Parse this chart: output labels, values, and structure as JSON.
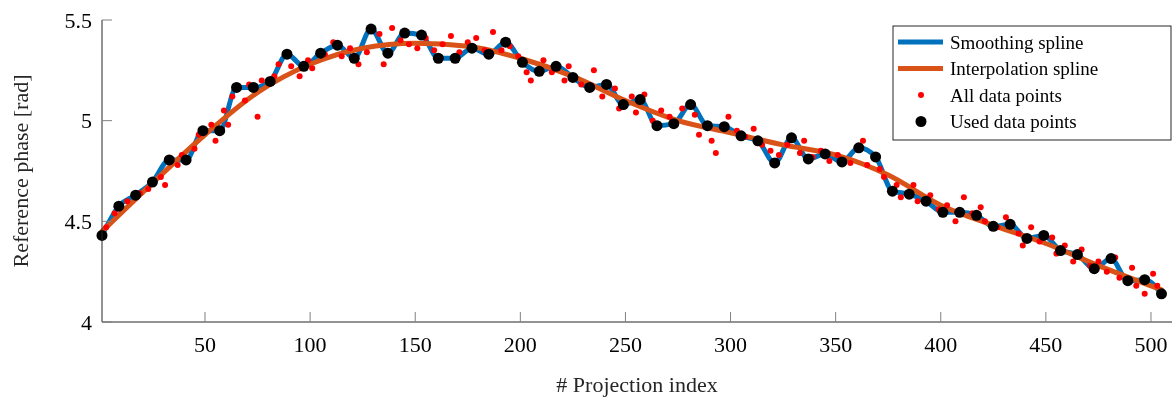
{
  "chart_data": {
    "type": "line",
    "xlabel": "# Projection index",
    "ylabel": "Reference phase [rad]",
    "xlim": [
      1,
      510
    ],
    "ylim": [
      4,
      5.5
    ],
    "xticks": [
      50,
      100,
      150,
      200,
      250,
      300,
      350,
      400,
      450,
      500
    ],
    "yticks": [
      4,
      4.5,
      5,
      5.5
    ],
    "grid": false,
    "legend": "top right",
    "series": [
      {
        "name": "Smoothing spline",
        "color": "#0072bd",
        "marker": "none",
        "x": [
          1,
          9,
          17,
          25,
          33,
          41,
          49,
          57,
          65,
          73,
          81,
          89,
          97,
          105,
          113,
          121,
          129,
          137,
          145,
          153,
          161,
          169,
          177,
          185,
          193,
          201,
          209,
          217,
          225,
          233,
          241,
          249,
          257,
          265,
          273,
          281,
          289,
          297,
          305,
          313,
          321,
          329,
          337,
          345,
          353,
          361,
          369,
          377,
          385,
          393,
          401,
          409,
          417,
          425,
          433,
          441,
          449,
          457,
          465,
          473,
          481,
          489,
          497,
          505
        ],
        "values": [
          4.43,
          4.575,
          4.63,
          4.695,
          4.805,
          4.805,
          4.95,
          4.95,
          5.165,
          5.165,
          5.195,
          5.33,
          5.27,
          5.335,
          5.375,
          5.31,
          5.455,
          5.335,
          5.435,
          5.425,
          5.31,
          5.31,
          5.36,
          5.33,
          5.39,
          5.29,
          5.245,
          5.27,
          5.215,
          5.165,
          5.18,
          5.08,
          5.105,
          4.975,
          4.985,
          5.08,
          4.975,
          4.97,
          4.925,
          4.9,
          4.79,
          4.915,
          4.81,
          4.835,
          4.795,
          4.865,
          4.82,
          4.65,
          4.635,
          4.6,
          4.545,
          4.545,
          4.53,
          4.475,
          4.485,
          4.415,
          4.43,
          4.355,
          4.335,
          4.265,
          4.315,
          4.205,
          4.21,
          4.14
        ]
      },
      {
        "name": "Interpolation spline",
        "color": "#d95319",
        "marker": "none",
        "x": [
          1,
          25,
          50,
          75,
          100,
          125,
          150,
          175,
          200,
          225,
          250,
          275,
          300,
          325,
          350,
          375,
          400,
          425,
          450,
          475,
          505
        ],
        "values": [
          4.45,
          4.69,
          4.93,
          5.14,
          5.28,
          5.36,
          5.385,
          5.37,
          5.31,
          5.22,
          5.1,
          5.0,
          4.94,
          4.88,
          4.83,
          4.73,
          4.58,
          4.48,
          4.39,
          4.28,
          4.16
        ]
      },
      {
        "name": "All data points",
        "type": "scatter",
        "color": "#ff0000",
        "marker": "circle",
        "x": [
          3,
          7,
          13,
          19,
          23,
          29,
          31,
          37,
          39,
          45,
          47,
          53,
          55,
          59,
          61,
          63,
          69,
          71,
          75,
          77,
          83,
          85,
          91,
          95,
          99,
          101,
          107,
          111,
          115,
          119,
          123,
          127,
          133,
          135,
          139,
          143,
          147,
          151,
          155,
          159,
          163,
          167,
          171,
          175,
          179,
          183,
          187,
          191,
          195,
          199,
          203,
          205,
          211,
          215,
          221,
          223,
          229,
          235,
          239,
          245,
          247,
          253,
          255,
          259,
          263,
          267,
          271,
          277,
          283,
          285,
          291,
          293,
          299,
          303,
          307,
          311,
          315,
          319,
          323,
          327,
          333,
          335,
          339,
          343,
          347,
          351,
          357,
          363,
          365,
          371,
          373,
          379,
          381,
          387,
          389,
          395,
          399,
          403,
          407,
          411,
          415,
          419,
          421,
          427,
          431,
          437,
          439,
          443,
          447,
          453,
          455,
          459,
          463,
          467,
          471,
          475,
          479,
          483,
          485,
          491,
          493,
          497,
          501,
          503
        ],
        "values": [
          4.47,
          4.54,
          4.6,
          4.64,
          4.66,
          4.72,
          4.68,
          4.78,
          4.83,
          4.86,
          4.93,
          4.98,
          4.9,
          5.05,
          4.98,
          5.12,
          5.1,
          5.18,
          5.02,
          5.2,
          5.22,
          5.28,
          5.27,
          5.22,
          5.3,
          5.26,
          5.33,
          5.39,
          5.32,
          5.36,
          5.28,
          5.34,
          5.43,
          5.28,
          5.46,
          5.4,
          5.38,
          5.36,
          5.41,
          5.35,
          5.38,
          5.42,
          5.34,
          5.39,
          5.41,
          5.35,
          5.44,
          5.35,
          5.37,
          5.32,
          5.24,
          5.2,
          5.3,
          5.24,
          5.2,
          5.27,
          5.18,
          5.25,
          5.12,
          5.16,
          5.06,
          5.12,
          5.04,
          5.13,
          5.0,
          5.05,
          5.02,
          5.06,
          5.03,
          4.93,
          4.9,
          4.84,
          5.02,
          4.95,
          4.92,
          4.96,
          4.88,
          4.85,
          4.83,
          4.88,
          4.84,
          4.9,
          4.82,
          4.85,
          4.8,
          4.83,
          4.79,
          4.9,
          4.78,
          4.76,
          4.72,
          4.68,
          4.62,
          4.68,
          4.6,
          4.63,
          4.56,
          4.58,
          4.5,
          4.62,
          4.54,
          4.57,
          4.5,
          4.47,
          4.52,
          4.44,
          4.38,
          4.47,
          4.4,
          4.42,
          4.34,
          4.38,
          4.3,
          4.36,
          4.28,
          4.3,
          4.25,
          4.32,
          4.22,
          4.27,
          4.18,
          4.14,
          4.24,
          4.18
        ]
      },
      {
        "name": "Used data points",
        "type": "scatter",
        "color": "#000000",
        "marker": "circle",
        "x": [
          1,
          9,
          17,
          25,
          33,
          41,
          49,
          57,
          65,
          73,
          81,
          89,
          97,
          105,
          113,
          121,
          129,
          137,
          145,
          153,
          161,
          169,
          177,
          185,
          193,
          201,
          209,
          217,
          225,
          233,
          241,
          249,
          257,
          265,
          273,
          281,
          289,
          297,
          305,
          313,
          321,
          329,
          337,
          345,
          353,
          361,
          369,
          377,
          385,
          393,
          401,
          409,
          417,
          425,
          433,
          441,
          449,
          457,
          465,
          473,
          481,
          489,
          497,
          505
        ],
        "values": [
          4.43,
          4.575,
          4.63,
          4.695,
          4.805,
          4.805,
          4.95,
          4.95,
          5.165,
          5.165,
          5.195,
          5.33,
          5.27,
          5.335,
          5.375,
          5.31,
          5.455,
          5.335,
          5.435,
          5.425,
          5.31,
          5.31,
          5.36,
          5.33,
          5.39,
          5.29,
          5.245,
          5.27,
          5.215,
          5.165,
          5.18,
          5.08,
          5.105,
          4.975,
          4.985,
          5.08,
          4.975,
          4.97,
          4.925,
          4.9,
          4.79,
          4.915,
          4.81,
          4.835,
          4.795,
          4.865,
          4.82,
          4.65,
          4.635,
          4.6,
          4.545,
          4.545,
          4.53,
          4.475,
          4.485,
          4.415,
          4.43,
          4.355,
          4.335,
          4.265,
          4.315,
          4.205,
          4.21,
          4.14
        ]
      }
    ]
  }
}
